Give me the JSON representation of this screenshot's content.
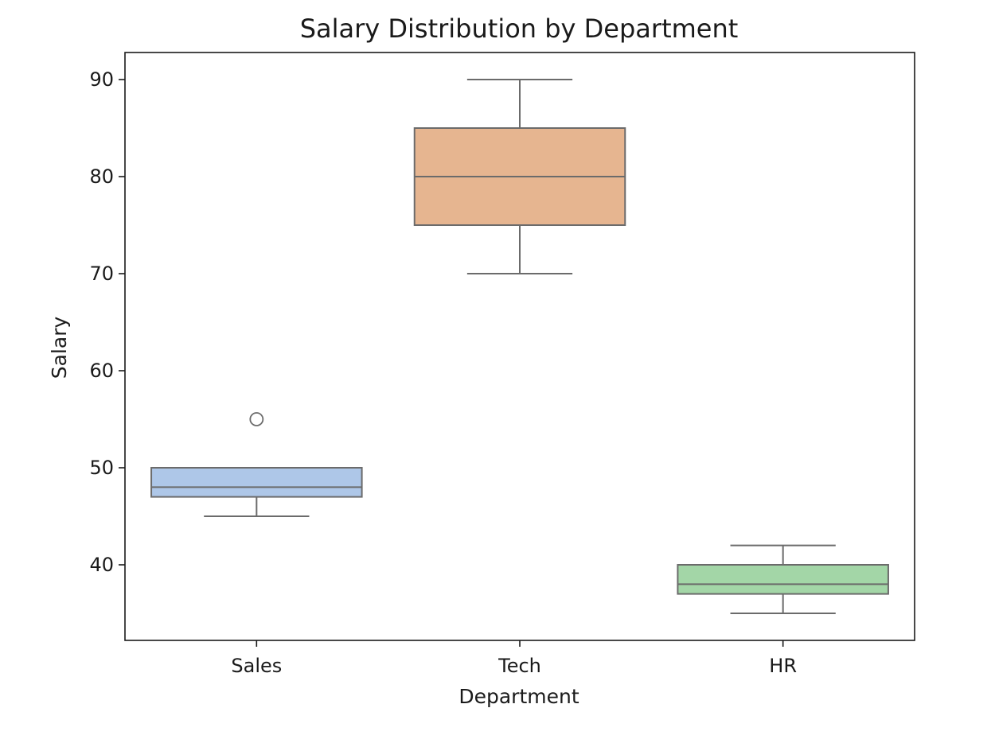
{
  "chart_data": {
    "type": "box",
    "title": "Salary Distribution by Department",
    "xlabel": "Department",
    "ylabel": "Salary",
    "ylim": [
      32,
      92
    ],
    "yticks": [
      40,
      50,
      60,
      70,
      80,
      90
    ],
    "grid": false,
    "legend": "none",
    "categories": [
      "Sales",
      "Tech",
      "HR"
    ],
    "boxes": [
      {
        "category": "Sales",
        "whisker_low": 45,
        "q1": 47,
        "median": 48,
        "q3": 50,
        "whisker_high": 50,
        "outliers": [
          55
        ],
        "color": "#aec7e8"
      },
      {
        "category": "Tech",
        "whisker_low": 70,
        "q1": 75,
        "median": 80,
        "q3": 85,
        "whisker_high": 90,
        "outliers": [],
        "color": "#e6b590"
      },
      {
        "category": "HR",
        "whisker_low": 35,
        "q1": 37,
        "median": 38,
        "q3": 40,
        "whisker_high": 42,
        "outliers": [],
        "color": "#a3d6a7"
      }
    ]
  }
}
